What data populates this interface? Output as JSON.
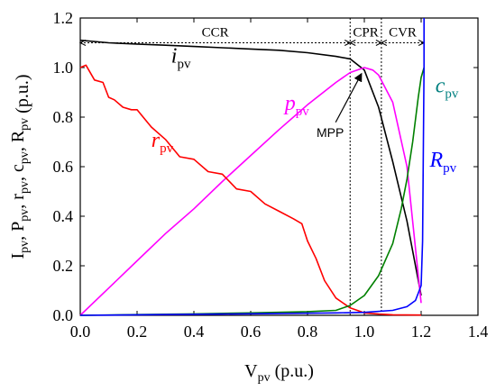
{
  "chart_data": {
    "type": "line",
    "xlabel": {
      "main": "V",
      "sub": "pv",
      "unit": " (p.u.)"
    },
    "ylabel": {
      "parts": [
        {
          "main": "I",
          "sub": "pv",
          "sep": ", "
        },
        {
          "main": "P",
          "sub": "pv",
          "sep": ", "
        },
        {
          "main": "r",
          "sub": "pv",
          "sep": ", "
        },
        {
          "main": "c",
          "sub": "pv",
          "sep": ", "
        },
        {
          "main": "R",
          "sub": "pv",
          "sep": ""
        }
      ],
      "unit": " (p.u.)"
    },
    "xlim": [
      0,
      1.4
    ],
    "ylim": [
      0,
      1.2
    ],
    "xticks": [
      "0.0",
      "0.2",
      "0.4",
      "0.6",
      "0.8",
      "1.0",
      "1.2",
      "1.4"
    ],
    "yticks": [
      "0.0",
      "0.2",
      "0.4",
      "0.6",
      "0.8",
      "1.0",
      "1.2"
    ],
    "grid": false,
    "regions": [
      {
        "label": "CCR",
        "x0": 0,
        "x1": 0.95
      },
      {
        "label": "CPR",
        "x0": 0.95,
        "x1": 1.06
      },
      {
        "label": "CVR",
        "x0": 1.06,
        "x1": 1.21
      }
    ],
    "region_arrow_y": 1.1,
    "boundaries": [
      {
        "x": 0.95,
        "y_top": 1.2
      },
      {
        "x": 1.06,
        "y_top": 1.2
      }
    ],
    "series": [
      {
        "name": "i",
        "sub": "pv",
        "color": "#000000",
        "label_pos": [
          0.32,
          1.02
        ],
        "x": [
          0,
          0.1,
          0.2,
          0.3,
          0.4,
          0.5,
          0.6,
          0.7,
          0.8,
          0.9,
          0.95,
          1.0,
          1.05,
          1.1,
          1.15,
          1.2
        ],
        "y": [
          1.11,
          1.1,
          1.095,
          1.09,
          1.085,
          1.08,
          1.075,
          1.07,
          1.06,
          1.045,
          1.035,
          0.99,
          0.84,
          0.62,
          0.38,
          0.08
        ]
      },
      {
        "name": "p",
        "sub": "pv",
        "color": "#ff00ff",
        "label_pos": [
          0.72,
          0.83
        ],
        "x": [
          0,
          0.1,
          0.2,
          0.3,
          0.4,
          0.5,
          0.6,
          0.7,
          0.8,
          0.9,
          0.95,
          1.0,
          1.03,
          1.05,
          1.1,
          1.15,
          1.2
        ],
        "y": [
          0,
          0.11,
          0.22,
          0.33,
          0.43,
          0.54,
          0.645,
          0.75,
          0.85,
          0.94,
          0.98,
          1.0,
          0.99,
          0.97,
          0.86,
          0.6,
          0.05
        ]
      },
      {
        "name": "r",
        "sub": "pv",
        "color": "#ff0000",
        "label_pos": [
          0.25,
          0.68
        ],
        "x": [
          0,
          0.02,
          0.05,
          0.08,
          0.1,
          0.12,
          0.15,
          0.18,
          0.2,
          0.25,
          0.3,
          0.35,
          0.4,
          0.45,
          0.5,
          0.55,
          0.6,
          0.65,
          0.7,
          0.75,
          0.78,
          0.8,
          0.83,
          0.86,
          0.9,
          0.95,
          1.0,
          1.05,
          1.1,
          1.2
        ],
        "y": [
          1.0,
          1.01,
          0.95,
          0.94,
          0.88,
          0.87,
          0.84,
          0.83,
          0.83,
          0.76,
          0.71,
          0.64,
          0.63,
          0.58,
          0.57,
          0.51,
          0.5,
          0.45,
          0.42,
          0.39,
          0.37,
          0.3,
          0.23,
          0.14,
          0.07,
          0.03,
          0.01,
          0.005,
          0.002,
          0.001
        ]
      },
      {
        "name": "c",
        "sub": "pv",
        "color": "#008000",
        "label_pos": [
          1.25,
          0.9
        ],
        "label_color": "#008080",
        "x": [
          0,
          0.2,
          0.4,
          0.6,
          0.8,
          0.9,
          0.95,
          1.0,
          1.05,
          1.1,
          1.13,
          1.15,
          1.17,
          1.19,
          1.2,
          1.21
        ],
        "y": [
          0,
          0.003,
          0.006,
          0.01,
          0.015,
          0.02,
          0.04,
          0.08,
          0.16,
          0.29,
          0.43,
          0.55,
          0.7,
          0.88,
          0.96,
          1.0
        ]
      },
      {
        "name": "R",
        "sub": "pv",
        "color": "#0000ff",
        "label_pos": [
          1.23,
          0.6
        ],
        "x": [
          0,
          0.5,
          0.9,
          1.0,
          1.1,
          1.15,
          1.18,
          1.2,
          1.205,
          1.208,
          1.21,
          1.21
        ],
        "y": [
          0,
          0.005,
          0.01,
          0.012,
          0.02,
          0.035,
          0.06,
          0.12,
          0.3,
          0.7,
          1.0,
          1.2
        ]
      }
    ],
    "annotation": {
      "text": "MPP",
      "text_pos": [
        0.88,
        0.83
      ],
      "arrow_to": [
        0.99,
        0.99
      ]
    }
  }
}
